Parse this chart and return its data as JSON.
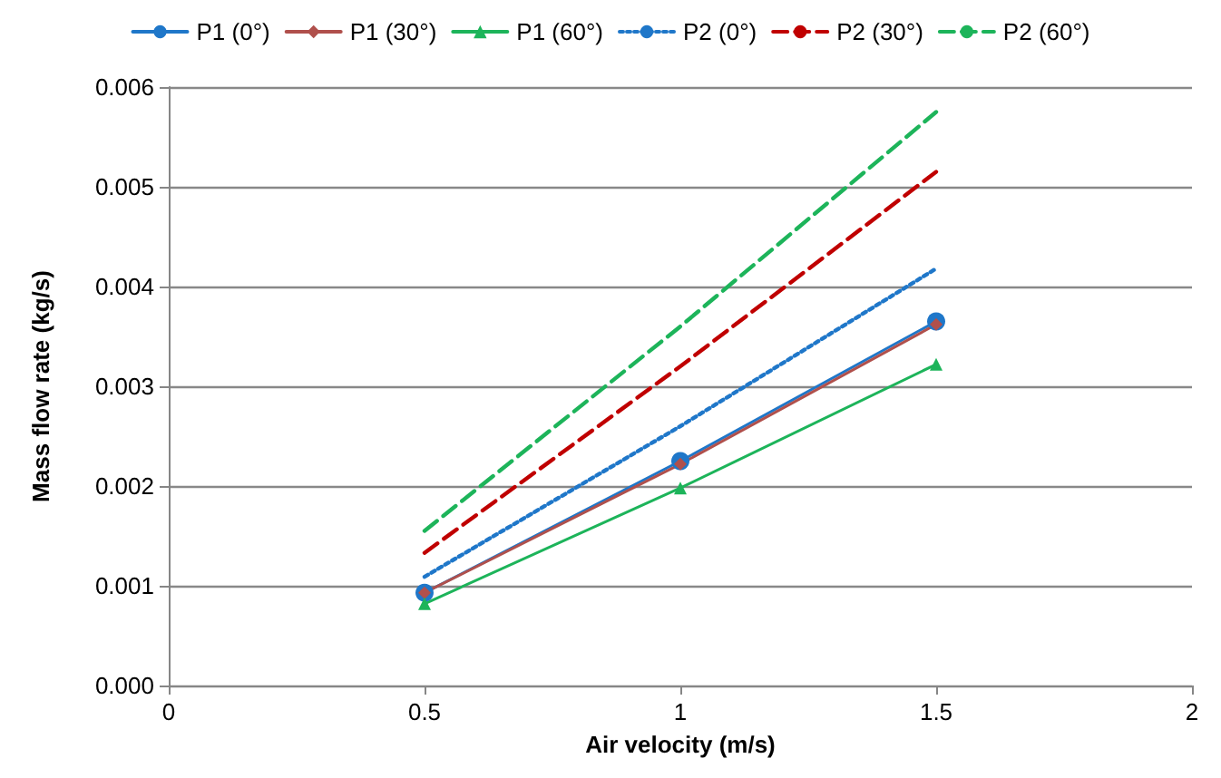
{
  "chart_data": {
    "type": "line",
    "xlabel": "Air velocity (m/s)",
    "ylabel": "Mass flow rate (kg/s)",
    "x": [
      0.5,
      1,
      1.5
    ],
    "series": [
      {
        "name": "P1 (0°)",
        "color": "#1f77c9",
        "values": [
          0.00093,
          0.00225,
          0.00365
        ],
        "marker": "circle",
        "line_style": "solid"
      },
      {
        "name": "P1 (30°)",
        "color": "#b0504c",
        "values": [
          0.00093,
          0.00222,
          0.00362
        ],
        "marker": "diamond",
        "line_style": "solid"
      },
      {
        "name": "P1 (60°)",
        "color": "#1db45a",
        "values": [
          0.00082,
          0.00198,
          0.00322
        ],
        "marker": "triangle",
        "line_style": "solid"
      },
      {
        "name": "P2 (0°)",
        "color": "#1f77c9",
        "values": [
          0.00109,
          0.0026,
          0.00418
        ],
        "marker": "none",
        "line_style": "dotted"
      },
      {
        "name": "P2 (30°)",
        "color": "#c00000",
        "values": [
          0.00133,
          0.0032,
          0.00515
        ],
        "marker": "none",
        "line_style": "dashed"
      },
      {
        "name": "P2 (60°)",
        "color": "#1db45a",
        "values": [
          0.00155,
          0.0036,
          0.00575
        ],
        "marker": "none",
        "line_style": "dashed"
      }
    ],
    "xlim": [
      0,
      2
    ],
    "xticks": [
      0,
      0.5,
      1,
      1.5,
      2
    ],
    "ylim": [
      0,
      0.006
    ],
    "yticks": [
      {
        "value": 0,
        "label": "0.000"
      },
      {
        "value": 0.001,
        "label": "0.001"
      },
      {
        "value": 0.002,
        "label": "0.002"
      },
      {
        "value": 0.003,
        "label": "0.003"
      },
      {
        "value": 0.004,
        "label": "0.004"
      },
      {
        "value": 0.005,
        "label": "0.005"
      },
      {
        "value": 0.006,
        "label": "0.006"
      }
    ],
    "grid": "y",
    "legend": "top"
  }
}
